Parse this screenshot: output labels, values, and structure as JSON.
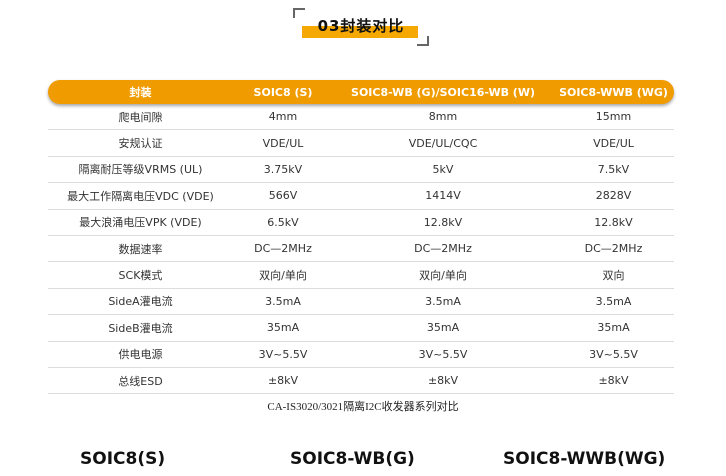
{
  "section_title": "03封装对比",
  "table": {
    "headers": [
      "封装",
      "SOIC8 (S)",
      "SOIC8-WB (G)/SOIC16-WB (W)",
      "SOIC8-WWB (WG)"
    ],
    "rows": [
      [
        "爬电间隙",
        "4mm",
        "8mm",
        "15mm"
      ],
      [
        "安规认证",
        "VDE/UL",
        "VDE/UL/CQC",
        "VDE/UL"
      ],
      [
        "隔离耐压等级VRMS (UL)",
        "3.75kV",
        "5kV",
        "7.5kV"
      ],
      [
        "最大工作隔离电压VDC (VDE)",
        "566V",
        "1414V",
        "2828V"
      ],
      [
        "最大浪涌电压VPK (VDE)",
        "6.5kV",
        "12.8kV",
        "12.8kV"
      ],
      [
        "数据速率",
        "DC—2MHz",
        "DC—2MHz",
        "DC—2MHz"
      ],
      [
        "SCK模式",
        "双向/单向",
        "双向/单向",
        "双向"
      ],
      [
        "SideA灌电流",
        "3.5mA",
        "3.5mA",
        "3.5mA"
      ],
      [
        "SideB灌电流",
        "35mA",
        "35mA",
        "35mA"
      ],
      [
        "供电电源",
        "3V~5.5V",
        "3V~5.5V",
        "3V~5.5V"
      ],
      [
        "总线ESD",
        "±8kV",
        "±8kV",
        "±8kV"
      ]
    ]
  },
  "caption": "CA-IS3020/3021隔离I2C收发器系列对比",
  "packages": [
    "SOIC8(S)",
    "SOIC8-WB(G)",
    "SOIC8-WWB(WG)"
  ],
  "colors": {
    "accent": "#f09c00"
  }
}
